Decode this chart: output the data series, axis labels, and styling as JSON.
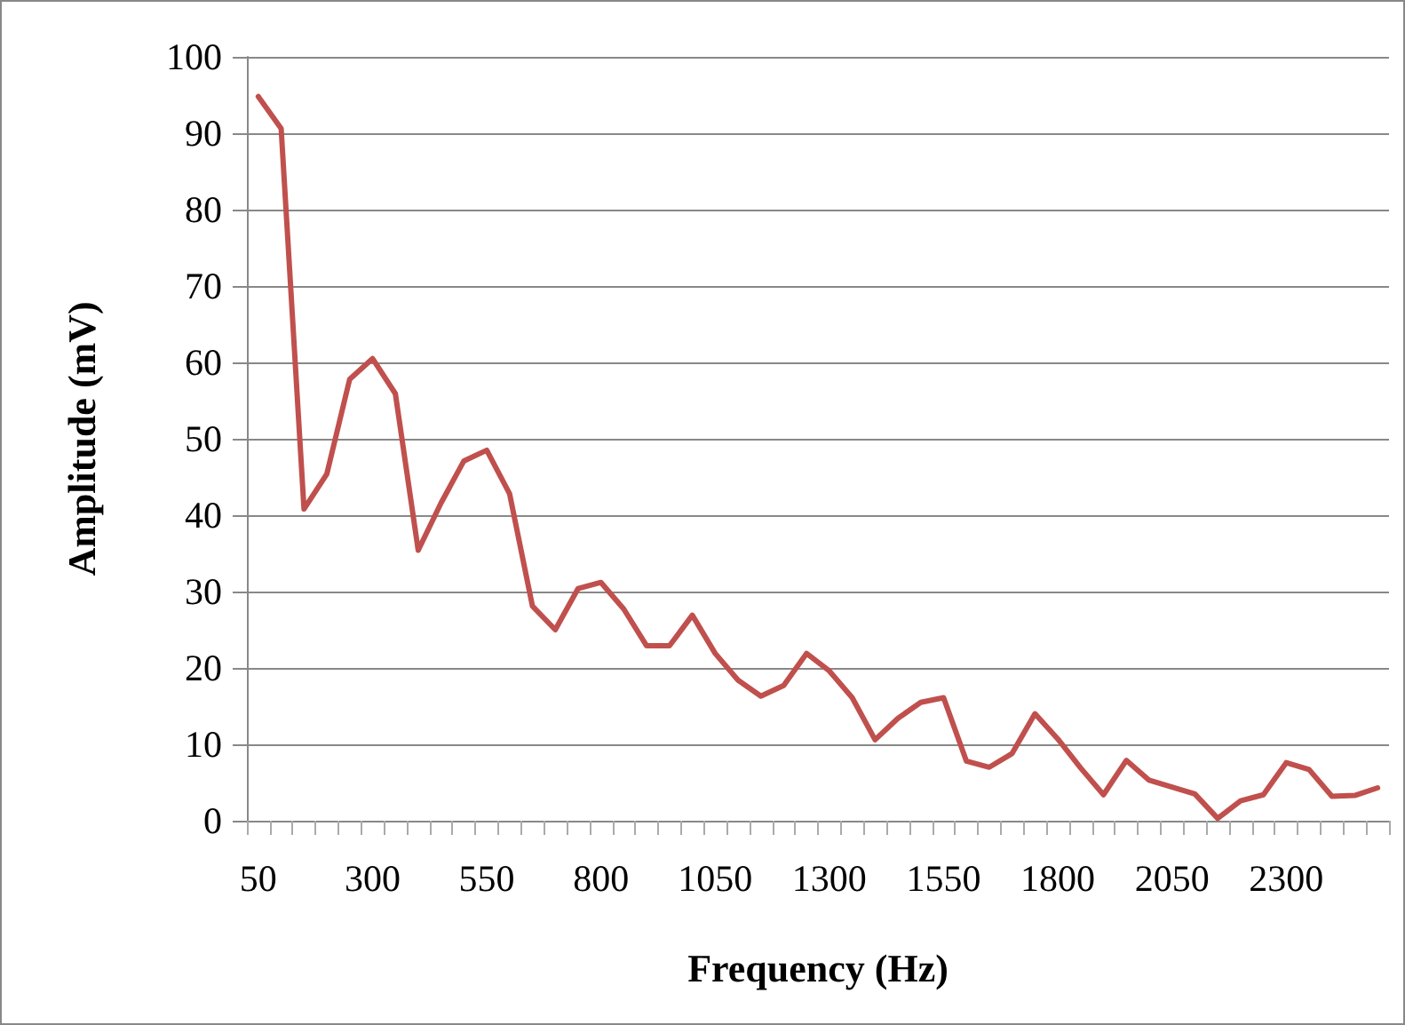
{
  "chart_data": {
    "type": "line",
    "xlabel": "Frequency (Hz)",
    "ylabel": "Amplitude (mV)",
    "categories": [
      "50",
      null,
      null,
      null,
      null,
      "300",
      null,
      null,
      null,
      null,
      "550",
      null,
      null,
      null,
      null,
      "800",
      null,
      null,
      null,
      null,
      "1050",
      null,
      null,
      null,
      null,
      "1300",
      null,
      null,
      null,
      null,
      "1550",
      null,
      null,
      null,
      null,
      "1800",
      null,
      null,
      null,
      null,
      "2050",
      null,
      null,
      null,
      null,
      "2300",
      null,
      null,
      null,
      null
    ],
    "series": [
      {
        "color": "#c0504d",
        "values": [
          94.8,
          90.6,
          40.8,
          45.4,
          57.8,
          60.5,
          55.9,
          35.4,
          41.6,
          47.1,
          48.5,
          42.8,
          28.1,
          25,
          30.4,
          31.2,
          27.7,
          22.9,
          22.9,
          26.9,
          21.9,
          18.4,
          16.3,
          17.7,
          21.9,
          19.6,
          16.1,
          10.6,
          13.4,
          15.5,
          16.1,
          7.8,
          7,
          8.8,
          14,
          10.7,
          6.9,
          3.4,
          7.9,
          5.3,
          4.4,
          3.5,
          0.3,
          2.6,
          3.4,
          7.6,
          6.7,
          3.2,
          3.3,
          4.3
        ]
      }
    ],
    "ylim": [
      0,
      100
    ],
    "yticks": [
      0,
      10,
      20,
      30,
      40,
      50,
      60,
      70,
      80,
      90,
      100
    ],
    "grid": "y",
    "marker": "none",
    "line_style": "solid"
  }
}
